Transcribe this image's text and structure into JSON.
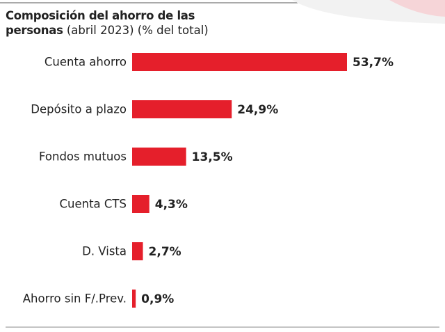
{
  "chart_data": {
    "type": "bar",
    "orientation": "horizontal",
    "title": "Composición del ahorro de las personas",
    "subtitle": "(abril 2023) (% del total)",
    "categories": [
      "Cuenta ahorro",
      "Depósito a plazo",
      "Fondos mutuos",
      "Cuenta CTS",
      "D. Vista",
      "Ahorro sin F/.Prev."
    ],
    "values": [
      53.7,
      24.9,
      13.5,
      4.3,
      2.7,
      0.9
    ],
    "value_labels": [
      "53,7%",
      "24,9%",
      "13,5%",
      "4,3%",
      "2,7%",
      "0,9%"
    ],
    "color": "#e51f2b"
  }
}
